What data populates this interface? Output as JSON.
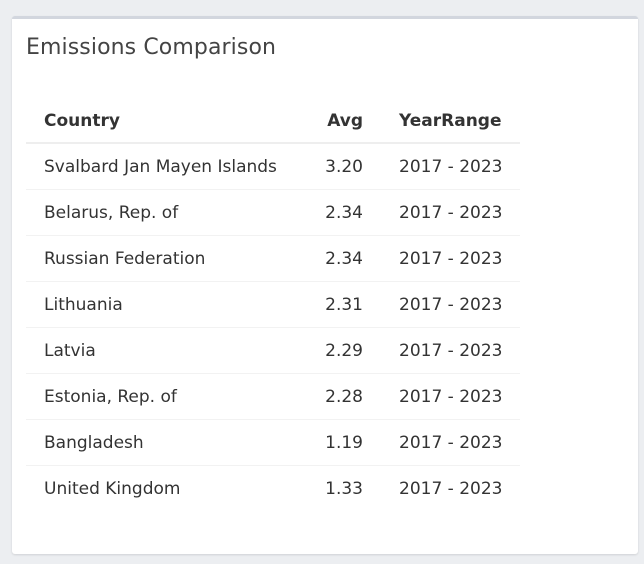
{
  "panel": {
    "title": "Emissions Comparison"
  },
  "table": {
    "headers": {
      "country": "Country",
      "avg": "Avg",
      "year_range": "YearRange"
    },
    "rows": [
      {
        "country": "Svalbard Jan Mayen Islands",
        "avg": "3.20",
        "year_range": "2017 - 2023"
      },
      {
        "country": "Belarus, Rep. of",
        "avg": "2.34",
        "year_range": "2017 - 2023"
      },
      {
        "country": "Russian Federation",
        "avg": "2.34",
        "year_range": "2017 - 2023"
      },
      {
        "country": "Lithuania",
        "avg": "2.31",
        "year_range": "2017 - 2023"
      },
      {
        "country": "Latvia",
        "avg": "2.29",
        "year_range": "2017 - 2023"
      },
      {
        "country": "Estonia, Rep. of",
        "avg": "2.28",
        "year_range": "2017 - 2023"
      },
      {
        "country": "Bangladesh",
        "avg": "1.19",
        "year_range": "2017 - 2023"
      },
      {
        "country": "United Kingdom",
        "avg": "1.33",
        "year_range": "2017 - 2023"
      }
    ]
  },
  "colors": {
    "page_background": "#eceef1",
    "panel_background": "#ffffff",
    "panel_top_border": "#d2d6de",
    "text": "#333333",
    "row_divider": "#f2f2f2"
  }
}
